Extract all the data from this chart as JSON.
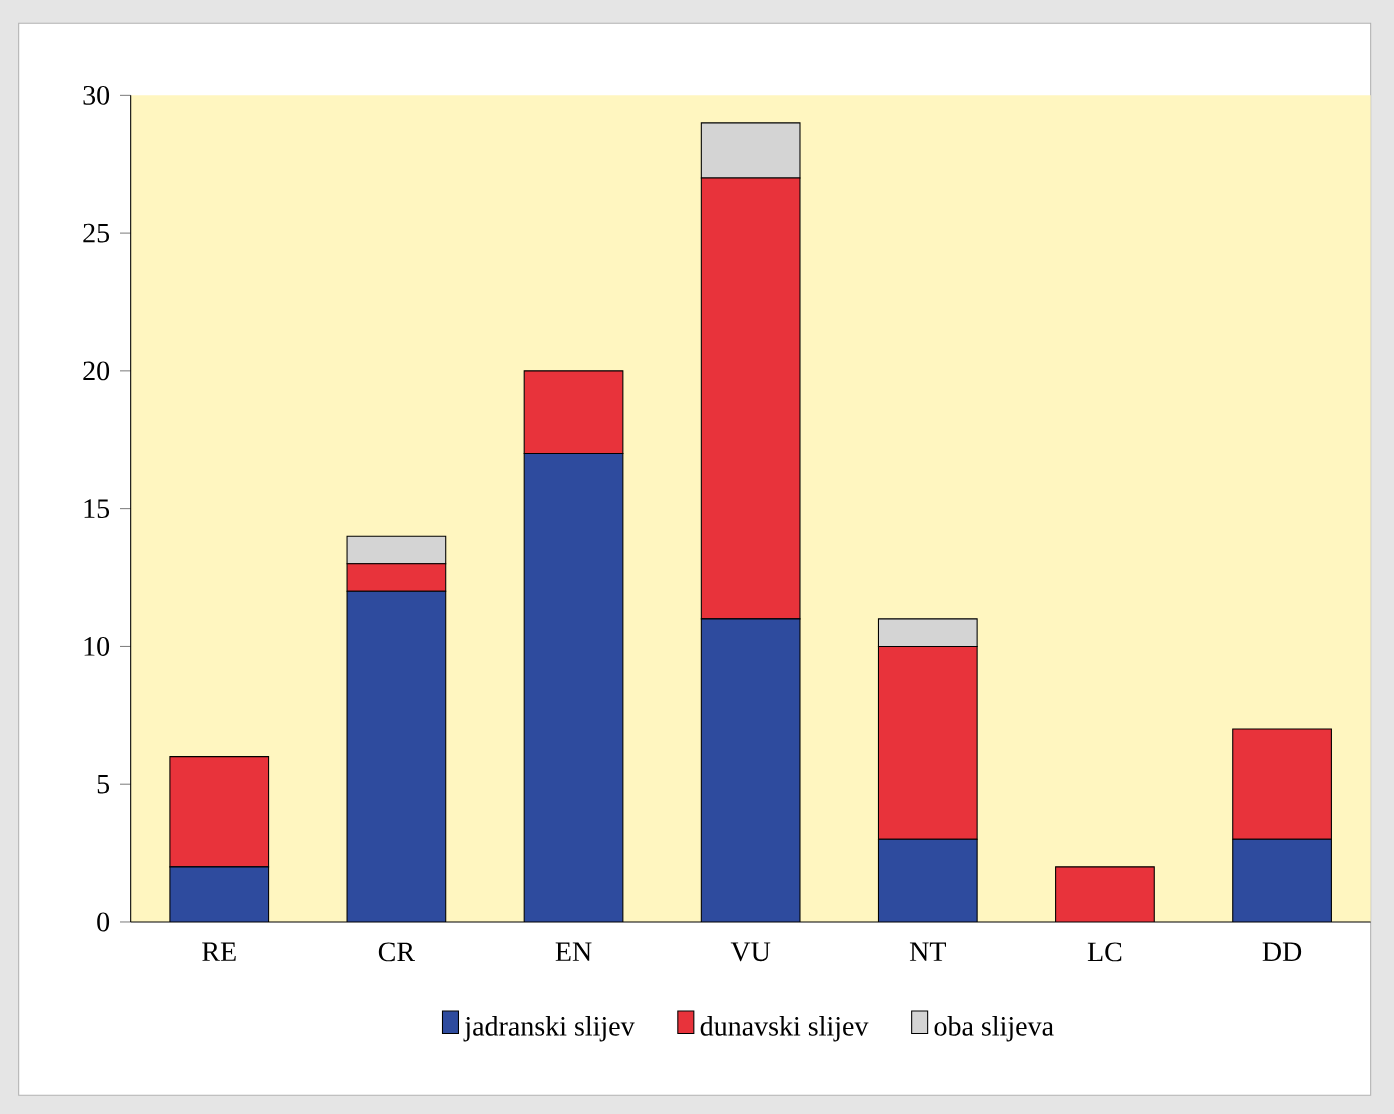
{
  "chart_data": {
    "type": "bar",
    "stacked": true,
    "categories": [
      "RE",
      "CR",
      "EN",
      "VU",
      "NT",
      "LC",
      "DD"
    ],
    "series": [
      {
        "name": "jadranski slijev",
        "color": "#2e4b9e",
        "values": [
          2,
          12,
          17,
          11,
          3,
          0,
          3
        ]
      },
      {
        "name": "dunavski slijev",
        "color": "#e8333b",
        "values": [
          4,
          1,
          3,
          16,
          7,
          2,
          4
        ]
      },
      {
        "name": "oba slijeva",
        "color": "#d4d4d4",
        "values": [
          0,
          1,
          0,
          2,
          1,
          0,
          0
        ]
      }
    ],
    "ylim": [
      0,
      30
    ],
    "yticks": [
      0,
      5,
      10,
      15,
      20,
      25,
      30
    ],
    "legend": "bottom",
    "grid": false
  }
}
